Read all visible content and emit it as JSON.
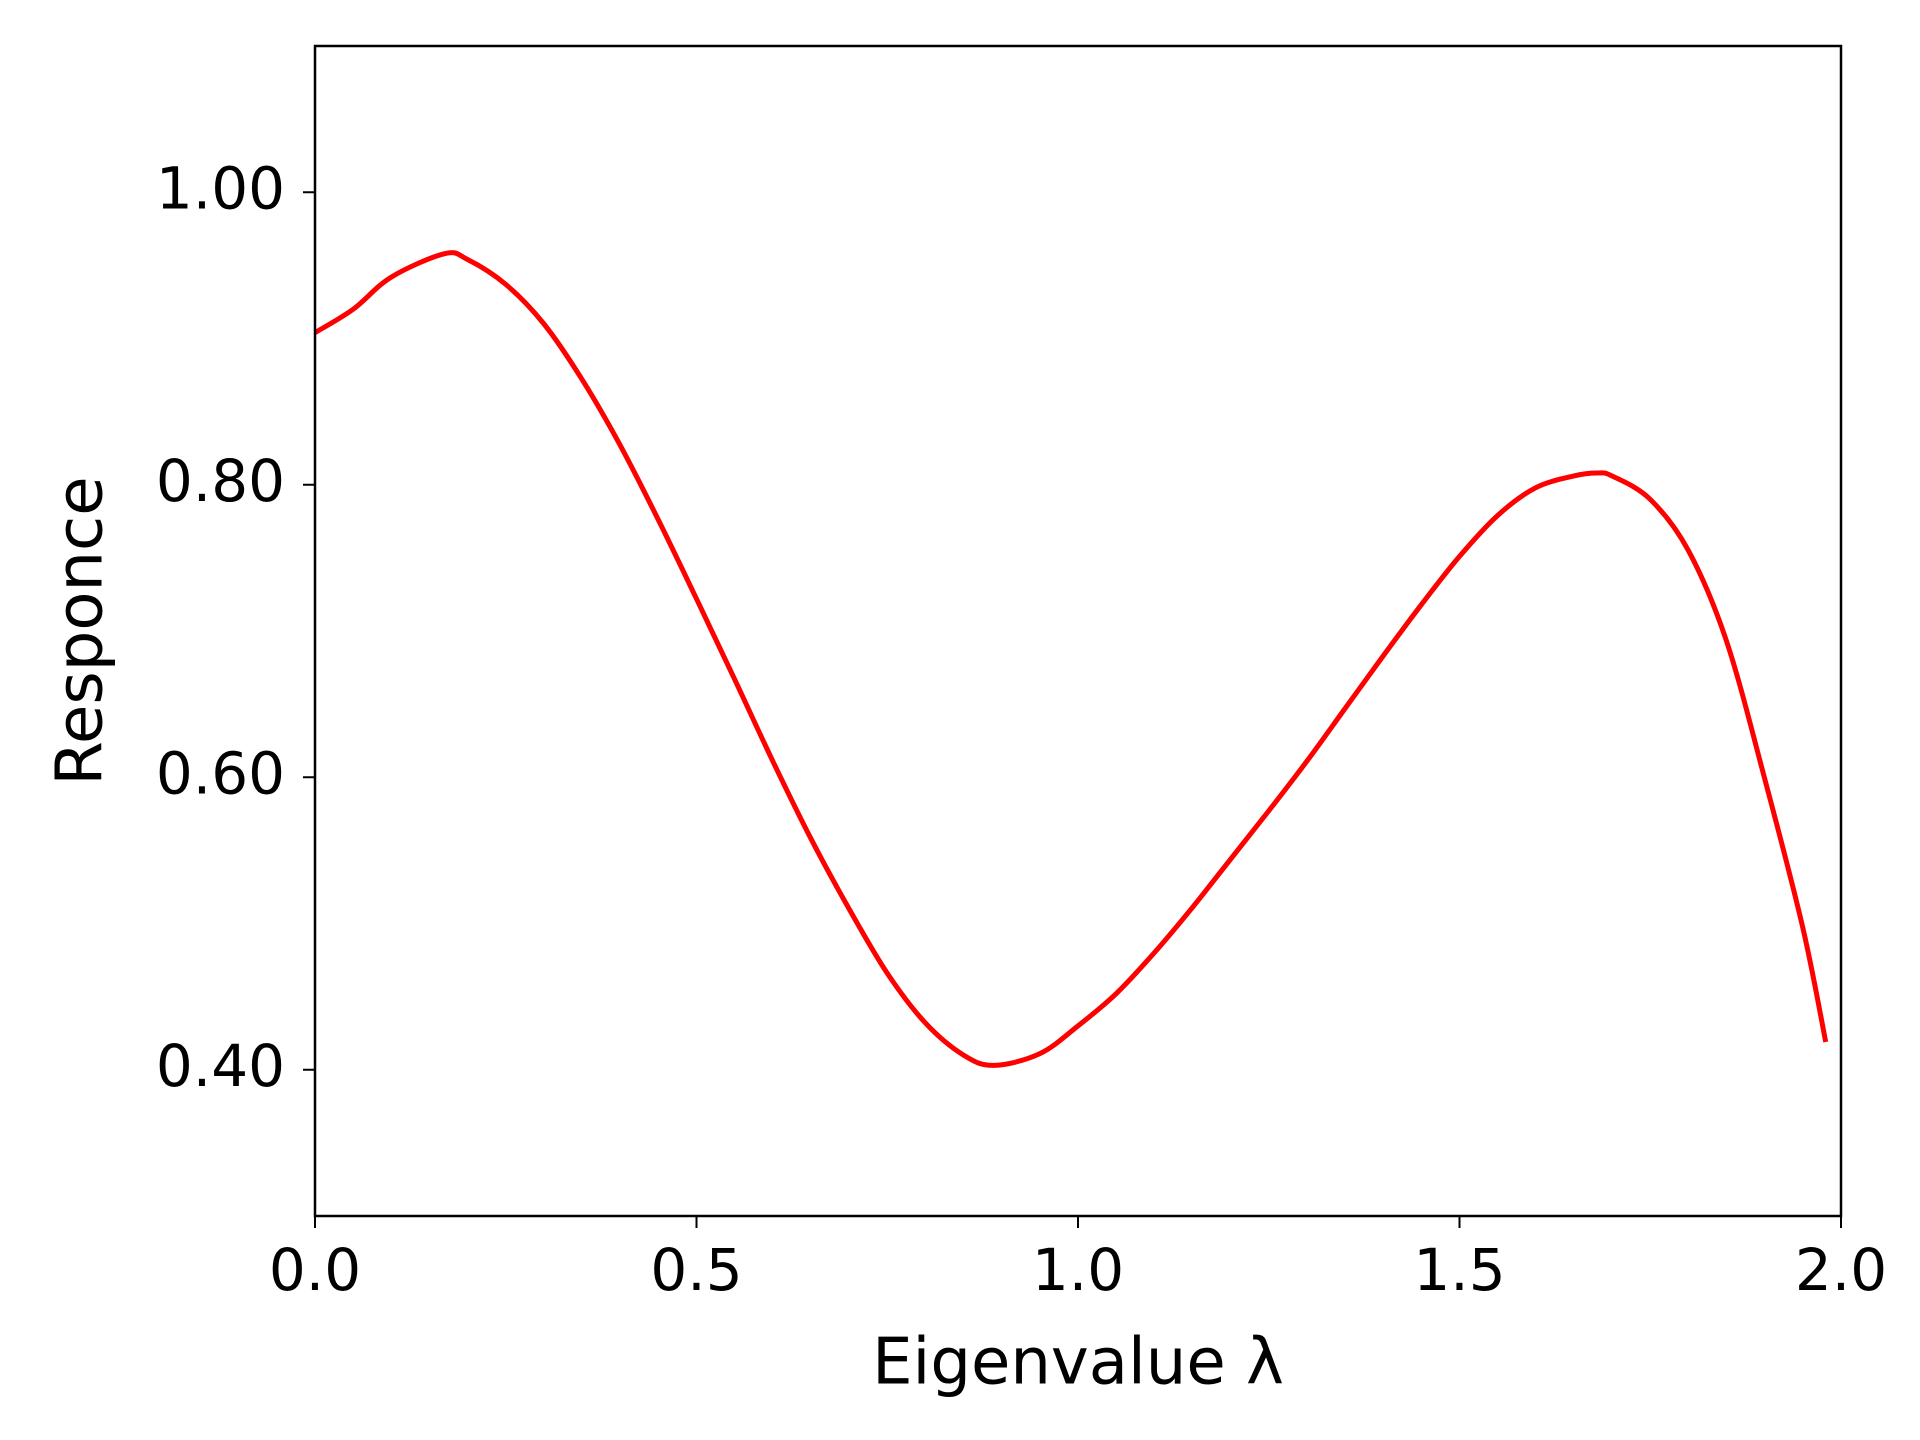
{
  "chart_data": {
    "type": "line",
    "xlabel": "Eigenvalue λ",
    "ylabel": "Responce",
    "xlim": [
      0,
      2
    ],
    "ylim": [
      0.3,
      1.1
    ],
    "xticks": [
      {
        "value": 0,
        "label": "0.0"
      },
      {
        "value": 0.5,
        "label": "0.5"
      },
      {
        "value": 1,
        "label": "1.0"
      },
      {
        "value": 1.5,
        "label": "1.5"
      },
      {
        "value": 2,
        "label": "2.0"
      }
    ],
    "yticks": [
      {
        "value": 0.4,
        "label": "0.40"
      },
      {
        "value": 0.6,
        "label": "0.60"
      },
      {
        "value": 0.8,
        "label": "0.80"
      },
      {
        "value": 1,
        "label": "1.00"
      }
    ],
    "x": [
      0,
      0.05,
      0.1,
      0.17,
      0.2,
      0.25,
      0.3,
      0.35,
      0.4,
      0.45,
      0.5,
      0.55,
      0.6,
      0.65,
      0.7,
      0.75,
      0.8,
      0.85,
      0.89,
      0.95,
      1.0,
      1.05,
      1.1,
      1.15,
      1.2,
      1.25,
      1.3,
      1.35,
      1.4,
      1.45,
      1.5,
      1.55,
      1.6,
      1.65,
      1.68,
      1.7,
      1.75,
      1.8,
      1.85,
      1.9,
      1.95,
      1.98
    ],
    "series": [
      {
        "color": "#ff0000",
        "values": [
          0.904,
          0.92,
          0.942,
          0.958,
          0.954,
          0.937,
          0.91,
          0.872,
          0.827,
          0.776,
          0.722,
          0.667,
          0.611,
          0.558,
          0.51,
          0.466,
          0.432,
          0.41,
          0.403,
          0.411,
          0.43,
          0.452,
          0.48,
          0.511,
          0.544,
          0.577,
          0.611,
          0.647,
          0.683,
          0.718,
          0.751,
          0.779,
          0.798,
          0.806,
          0.808,
          0.806,
          0.79,
          0.755,
          0.693,
          0.599,
          0.497,
          0.419
        ]
      }
    ]
  }
}
